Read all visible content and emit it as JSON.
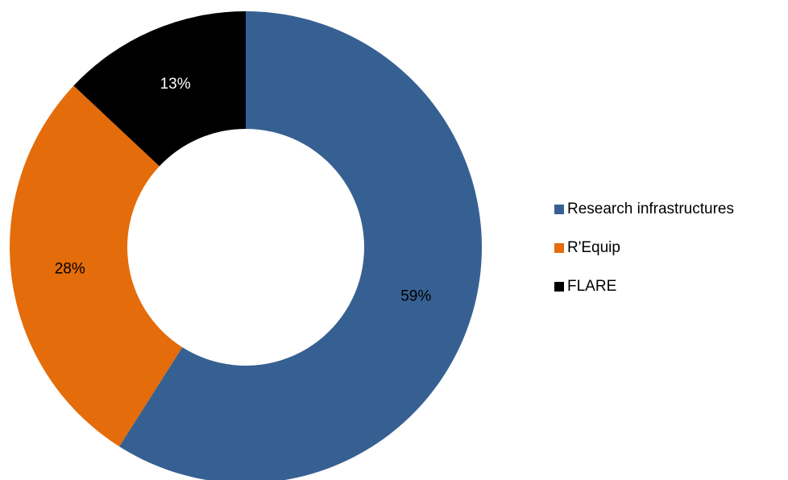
{
  "chart_data": {
    "type": "donut",
    "categories": [
      "Research infrastructures",
      "R'Equip",
      "FLARE"
    ],
    "values": [
      59,
      28,
      13
    ],
    "value_labels": [
      "59%",
      "28%",
      "13%"
    ],
    "colors": [
      "#376092",
      "#e46c0a",
      "#000000"
    ],
    "legend": "right"
  }
}
